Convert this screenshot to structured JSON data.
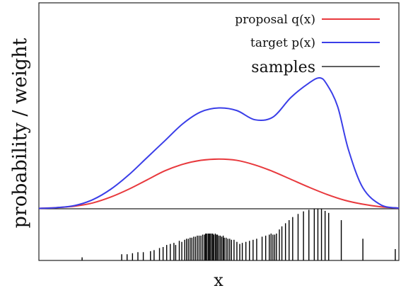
{
  "chart_data": {
    "type": "line",
    "title": "",
    "xlabel": "x",
    "ylabel": "probability / weight",
    "x_range": [
      0,
      10
    ],
    "y_range": [
      0,
      1.0
    ],
    "grid": false,
    "legend_position": "top-right",
    "series": [
      {
        "name": "proposal q(x)",
        "legend_label": "proposal q(x)",
        "color": "#e8393d",
        "x": [
          0,
          0.5,
          1,
          1.5,
          2,
          2.5,
          3,
          3.5,
          4,
          4.5,
          5,
          5.5,
          6,
          6.5,
          7,
          7.5,
          8,
          8.5,
          9,
          9.5,
          10
        ],
        "y": [
          0.003,
          0.009,
          0.02,
          0.045,
          0.09,
          0.15,
          0.22,
          0.29,
          0.34,
          0.37,
          0.38,
          0.37,
          0.335,
          0.285,
          0.225,
          0.165,
          0.11,
          0.065,
          0.035,
          0.015,
          0.005
        ]
      },
      {
        "name": "target p(x)",
        "legend_label": "target p(x)",
        "color": "#3a3ee8",
        "x": [
          0,
          0.5,
          1,
          1.5,
          2,
          2.5,
          3,
          3.5,
          4,
          4.5,
          5,
          5.5,
          6,
          6.5,
          7,
          7.5,
          7.8,
          8,
          8.3,
          8.6,
          9,
          9.5,
          10
        ],
        "y": [
          0.003,
          0.009,
          0.025,
          0.07,
          0.15,
          0.26,
          0.39,
          0.52,
          0.65,
          0.74,
          0.77,
          0.75,
          0.68,
          0.7,
          0.85,
          0.96,
          1.0,
          0.95,
          0.78,
          0.45,
          0.16,
          0.03,
          0.005
        ]
      }
    ],
    "samples": {
      "name": "samples",
      "legend_label": "samples",
      "color": "#000000",
      "x": [
        1.2,
        2.3,
        2.45,
        2.6,
        2.75,
        2.9,
        3.1,
        3.2,
        3.35,
        3.45,
        3.55,
        3.65,
        3.75,
        3.8,
        3.9,
        3.97,
        4.05,
        4.1,
        4.15,
        4.2,
        4.25,
        4.3,
        4.35,
        4.4,
        4.45,
        4.5,
        4.55,
        4.6,
        4.63,
        4.66,
        4.7,
        4.73,
        4.76,
        4.8,
        4.83,
        4.86,
        4.9,
        4.93,
        4.96,
        5.0,
        5.04,
        5.08,
        5.12,
        5.15,
        5.2,
        5.25,
        5.3,
        5.35,
        5.42,
        5.5,
        5.58,
        5.65,
        5.75,
        5.85,
        5.95,
        6.05,
        6.2,
        6.3,
        6.4,
        6.45,
        6.5,
        6.55,
        6.6,
        6.68,
        6.75,
        6.85,
        6.95,
        7.05,
        7.2,
        7.35,
        7.5,
        7.65,
        7.75,
        7.85,
        7.95,
        8.05,
        8.4,
        9.0,
        9.9
      ],
      "w": [
        0.06,
        0.12,
        0.12,
        0.14,
        0.16,
        0.16,
        0.18,
        0.2,
        0.24,
        0.26,
        0.3,
        0.32,
        0.34,
        0.3,
        0.38,
        0.36,
        0.4,
        0.42,
        0.42,
        0.44,
        0.44,
        0.46,
        0.46,
        0.48,
        0.48,
        0.48,
        0.5,
        0.5,
        0.52,
        0.52,
        0.52,
        0.52,
        0.52,
        0.52,
        0.52,
        0.5,
        0.52,
        0.5,
        0.5,
        0.48,
        0.48,
        0.46,
        0.48,
        0.44,
        0.44,
        0.42,
        0.42,
        0.4,
        0.4,
        0.36,
        0.32,
        0.34,
        0.36,
        0.38,
        0.4,
        0.42,
        0.46,
        0.48,
        0.5,
        0.52,
        0.5,
        0.5,
        0.52,
        0.6,
        0.66,
        0.72,
        0.78,
        0.84,
        0.9,
        0.95,
        0.98,
        1.0,
        1.0,
        1.0,
        0.96,
        0.92,
        0.78,
        0.42,
        0.22
      ]
    }
  }
}
